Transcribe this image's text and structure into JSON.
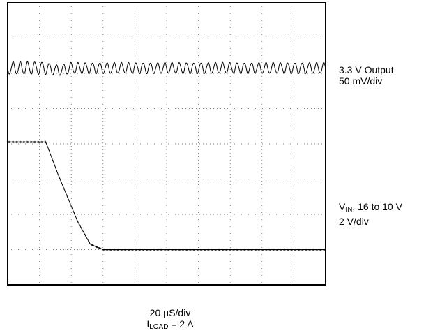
{
  "chart_data": {
    "type": "line",
    "grid": true,
    "x_divisions": 10,
    "y_divisions": 8,
    "series": [
      {
        "name": "3.3 V Output",
        "scale": "50 mV/div",
        "description_values": {
          "mean_div_from_top": 1.85,
          "ripple_peak_to_peak_div": 0.3,
          "ripple_cycles": 44
        },
        "color": "#000000"
      },
      {
        "name_main": "V",
        "name_sub": "IN",
        "name_rest": ", 16 to 10 V",
        "scale": "2 V/div",
        "x_div": [
          0,
          1.2,
          1.6,
          2.2,
          2.6,
          3.0,
          10
        ],
        "y_div_from_top": [
          3.95,
          3.95,
          4.9,
          6.2,
          6.85,
          7.0,
          7.0
        ],
        "color": "#000000"
      }
    ],
    "timebase": "20 µS/div",
    "load_main": "I",
    "load_sub": "LOAD",
    "load_rest": " = 2 A"
  }
}
